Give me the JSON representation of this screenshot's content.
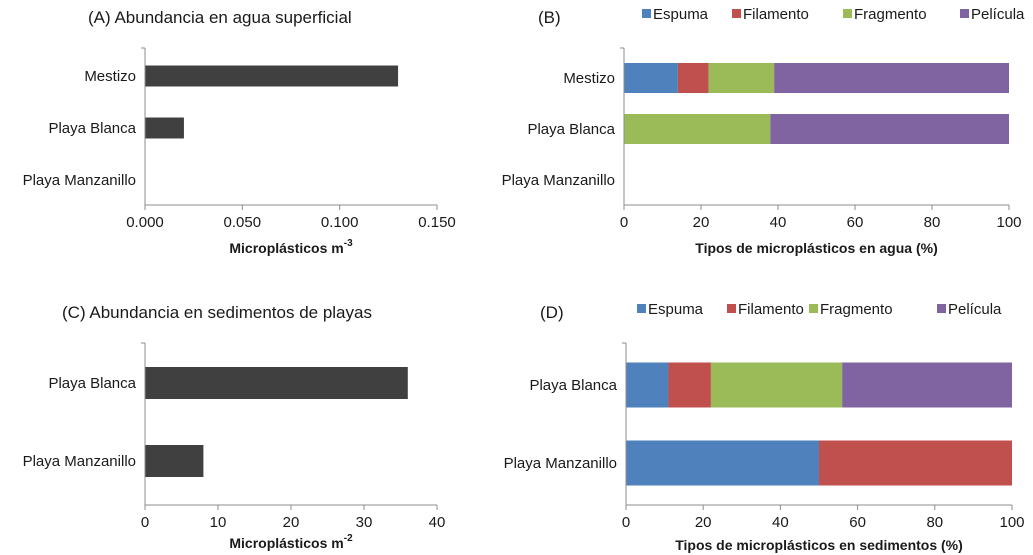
{
  "chart_data": [
    {
      "panel": "A",
      "type": "bar",
      "orientation": "horizontal",
      "title": "(A) Abundancia en agua superficial",
      "xlabel": "Microplásticos m",
      "xlabel_sup": "-3",
      "categories": [
        "Mestizo",
        "Playa Blanca",
        "Playa Manzanillo"
      ],
      "values": [
        0.13,
        0.02,
        0.0
      ],
      "xlim": [
        0,
        0.15
      ],
      "xticks": [
        "0.000",
        "0.050",
        "0.100",
        "0.150"
      ],
      "xtick_values": [
        0,
        0.05,
        0.1,
        0.15
      ],
      "color": "#404040",
      "grid": false
    },
    {
      "panel": "B",
      "type": "bar",
      "orientation": "horizontal",
      "stacked": true,
      "title": "(B)",
      "xlabel": "Tipos de microplásticos en agua (%)",
      "categories": [
        "Mestizo",
        "Playa Blanca",
        "Playa Manzanillo"
      ],
      "series": [
        {
          "name": "Espuma",
          "color": "#4f81bd",
          "values": [
            14,
            0,
            0
          ]
        },
        {
          "name": "Filamento",
          "color": "#c0504d",
          "values": [
            8,
            0,
            0
          ]
        },
        {
          "name": "Fragmento",
          "color": "#9bbb59",
          "values": [
            17,
            38,
            0
          ]
        },
        {
          "name": "Película",
          "color": "#8064a2",
          "values": [
            61,
            62,
            0
          ]
        }
      ],
      "xlim": [
        0,
        100
      ],
      "xticks": [
        "0",
        "20",
        "40",
        "60",
        "80",
        "100"
      ],
      "xtick_values": [
        0,
        20,
        40,
        60,
        80,
        100
      ],
      "legend": "top",
      "grid": false
    },
    {
      "panel": "C",
      "type": "bar",
      "orientation": "horizontal",
      "title": "(C) Abundancia en sedimentos de playas",
      "xlabel": "Microplásticos m",
      "xlabel_sup": "-2",
      "categories": [
        "Playa Blanca",
        "Playa Manzanillo"
      ],
      "values": [
        36,
        8
      ],
      "xlim": [
        0,
        40
      ],
      "xticks": [
        "0",
        "10",
        "20",
        "30",
        "40"
      ],
      "xtick_values": [
        0,
        10,
        20,
        30,
        40
      ],
      "color": "#404040",
      "grid": false
    },
    {
      "panel": "D",
      "type": "bar",
      "orientation": "horizontal",
      "stacked": true,
      "title": "(D)",
      "xlabel": "Tipos de microplásticos en sedimentos (%)",
      "categories": [
        "Playa Blanca",
        "Playa Manzanillo"
      ],
      "series": [
        {
          "name": "Espuma",
          "color": "#4f81bd",
          "values": [
            11,
            50
          ]
        },
        {
          "name": "Filamento",
          "color": "#c0504d",
          "values": [
            11,
            50
          ]
        },
        {
          "name": "Fragmento",
          "color": "#9bbb59",
          "values": [
            34,
            0
          ]
        },
        {
          "name": "Película",
          "color": "#8064a2",
          "values": [
            44,
            0
          ]
        }
      ],
      "xlim": [
        0,
        100
      ],
      "xticks": [
        "0",
        "20",
        "40",
        "60",
        "80",
        "100"
      ],
      "xtick_values": [
        0,
        20,
        40,
        60,
        80,
        100
      ],
      "legend": "top",
      "grid": false
    }
  ]
}
